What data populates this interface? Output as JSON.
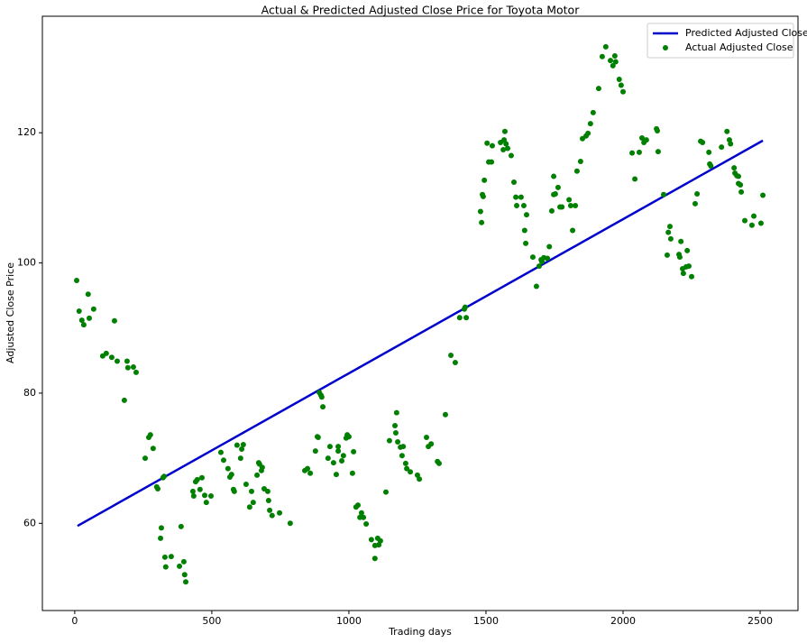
{
  "chart_data": {
    "type": "scatter",
    "title": "Actual & Predicted Adjusted Close Price for Toyota Motor",
    "x_label": "Trading days",
    "y_label": "Adjusted Close Price",
    "xlim": [
      -118,
      2638
    ],
    "ylim": [
      46.6,
      137.9
    ],
    "xticks": [
      0,
      500,
      1000,
      1500,
      2000,
      2500
    ],
    "yticks": [
      60,
      80,
      100,
      120
    ],
    "legend": "upper right",
    "series": [
      {
        "name": "Predicted Adjusted Close",
        "type": "line",
        "color": "#0000cc",
        "x": [
          10,
          2510
        ],
        "values": [
          59.6,
          118.8
        ]
      },
      {
        "name": "Actual Adjusted Close",
        "type": "scatter",
        "color": "#008000",
        "x": [
          7,
          16,
          26,
          33,
          49,
          53,
          69,
          102,
          115,
          135,
          145,
          155,
          181,
          191,
          194,
          214,
          224,
          257,
          270,
          276,
          286,
          299,
          303,
          313,
          316,
          322,
          326,
          329,
          332,
          352,
          382,
          388,
          398,
          401,
          405,
          431,
          434,
          441,
          447,
          457,
          464,
          474,
          480,
          497,
          533,
          543,
          559,
          566,
          572,
          579,
          582,
          592,
          605,
          609,
          615,
          625,
          638,
          645,
          651,
          665,
          671,
          674,
          681,
          684,
          691,
          704,
          707,
          711,
          720,
          747,
          786,
          839,
          849,
          859,
          878,
          885,
          888,
          892,
          898,
          901,
          905,
          924,
          931,
          944,
          954,
          961,
          961,
          974,
          980,
          990,
          994,
          1000,
          1013,
          1017,
          1026,
          1033,
          1040,
          1046,
          1053,
          1063,
          1082,
          1095,
          1095,
          1105,
          1109,
          1115,
          1135,
          1148,
          1168,
          1174,
          1171,
          1178,
          1188,
          1198,
          1194,
          1207,
          1211,
          1224,
          1250,
          1257,
          1283,
          1290,
          1300,
          1323,
          1329,
          1352,
          1372,
          1388,
          1404,
          1421,
          1424,
          1428,
          1480,
          1484,
          1487,
          1490,
          1494,
          1504,
          1510,
          1520,
          1523,
          1553,
          1563,
          1566,
          1569,
          1573,
          1579,
          1592,
          1602,
          1609,
          1612,
          1628,
          1638,
          1641,
          1645,
          1648,
          1671,
          1684,
          1694,
          1701,
          1704,
          1711,
          1724,
          1731,
          1740,
          1747,
          1747,
          1753,
          1763,
          1770,
          1777,
          1803,
          1809,
          1816,
          1826,
          1832,
          1845,
          1852,
          1865,
          1872,
          1881,
          1891,
          1911,
          1924,
          1937,
          1954,
          1963,
          1970,
          1973,
          1986,
          1993,
          2000,
          2033,
          2043,
          2059,
          2069,
          2076,
          2085,
          2122,
          2125,
          2128,
          2148,
          2161,
          2165,
          2171,
          2174,
          2204,
          2207,
          2211,
          2217,
          2220,
          2230,
          2234,
          2240,
          2250,
          2263,
          2270,
          2283,
          2290,
          2313,
          2316,
          2320,
          2359,
          2379,
          2388,
          2392,
          2405,
          2408,
          2415,
          2421,
          2421,
          2428,
          2431,
          2444,
          2470,
          2477,
          2503,
          2510
        ],
        "values": [
          97.3,
          92.6,
          91.2,
          90.5,
          95.2,
          91.5,
          92.9,
          85.7,
          86.1,
          85.5,
          91.1,
          84.9,
          78.9,
          84.9,
          83.9,
          84.0,
          83.2,
          70.0,
          73.2,
          73.6,
          71.5,
          65.6,
          65.3,
          57.7,
          59.3,
          67.0,
          67.2,
          54.8,
          53.3,
          54.9,
          53.4,
          59.5,
          54.1,
          52.1,
          51.0,
          64.9,
          64.2,
          66.4,
          66.7,
          65.2,
          67.0,
          64.3,
          63.2,
          64.2,
          70.9,
          69.7,
          68.4,
          67.1,
          67.5,
          65.2,
          64.9,
          72.0,
          70.0,
          71.4,
          72.1,
          66.0,
          62.5,
          64.9,
          63.2,
          67.4,
          69.3,
          69.1,
          68.1,
          68.6,
          65.3,
          64.9,
          63.5,
          62.0,
          61.2,
          61.6,
          60.0,
          68.1,
          68.4,
          67.7,
          71.1,
          73.3,
          73.2,
          80.1,
          79.7,
          79.4,
          77.9,
          70.0,
          71.8,
          69.3,
          67.5,
          71.8,
          71.1,
          69.6,
          70.4,
          73.1,
          73.6,
          73.3,
          67.7,
          71.0,
          62.5,
          62.8,
          60.9,
          61.6,
          60.9,
          59.9,
          57.5,
          54.6,
          56.6,
          57.7,
          56.7,
          57.3,
          64.8,
          72.7,
          75.0,
          77.0,
          73.9,
          72.5,
          71.7,
          71.8,
          70.4,
          69.2,
          68.4,
          67.9,
          67.4,
          66.8,
          73.2,
          71.8,
          72.2,
          69.5,
          69.2,
          76.7,
          85.8,
          84.7,
          91.6,
          92.9,
          93.2,
          91.6,
          107.9,
          106.2,
          110.5,
          110.2,
          112.7,
          118.4,
          115.5,
          115.5,
          118.0,
          118.5,
          117.4,
          118.9,
          120.2,
          118.3,
          117.6,
          116.5,
          112.4,
          110.1,
          108.8,
          110.1,
          108.8,
          105.0,
          103.0,
          107.4,
          100.9,
          96.4,
          99.5,
          100.5,
          100.2,
          100.8,
          100.7,
          102.5,
          108.0,
          110.5,
          113.3,
          110.6,
          111.6,
          108.6,
          108.6,
          109.7,
          108.8,
          105.0,
          108.8,
          114.1,
          115.6,
          119.1,
          119.5,
          119.9,
          121.4,
          123.1,
          126.8,
          131.7,
          133.2,
          131.1,
          130.3,
          131.8,
          130.9,
          128.2,
          127.3,
          126.3,
          116.9,
          112.9,
          117.0,
          119.2,
          118.5,
          118.9,
          120.6,
          120.3,
          117.1,
          110.5,
          101.2,
          104.7,
          105.6,
          103.7,
          101.3,
          100.9,
          103.3,
          99.1,
          98.4,
          99.4,
          101.9,
          99.5,
          97.9,
          109.1,
          110.6,
          118.7,
          118.5,
          117.0,
          115.2,
          114.9,
          117.8,
          120.2,
          118.9,
          118.3,
          114.6,
          113.8,
          113.4,
          113.3,
          112.2,
          112.0,
          110.9,
          106.5,
          105.8,
          107.2,
          106.1,
          110.4
        ]
      }
    ]
  }
}
